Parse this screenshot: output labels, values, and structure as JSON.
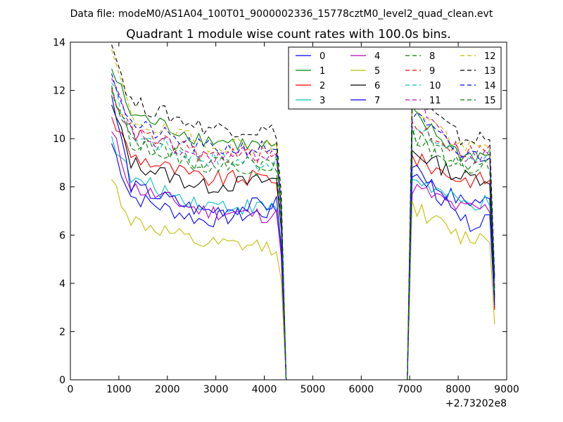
{
  "chart_data": {
    "type": "line",
    "supertitle": "Data file: modeM0/AS1A04_100T01_9000002336_15778cztM0_level2_quad_clean.evt",
    "title": "Quadrant 1 module wise count rates with 100.0s bins.",
    "xlabel": "",
    "ylabel": "",
    "x_offset_label": "+2.73202e8",
    "xlim": [
      0,
      9000
    ],
    "ylim": [
      0,
      14
    ],
    "xticks": [
      0,
      1000,
      2000,
      3000,
      4000,
      5000,
      6000,
      7000,
      8000,
      9000
    ],
    "xtick_labels": [
      "0",
      "1000",
      "2000",
      "3000",
      "4000",
      "5000",
      "6000",
      "7000",
      "8000",
      "9000"
    ],
    "yticks": [
      0,
      2,
      4,
      6,
      8,
      10,
      12,
      14
    ],
    "ytick_labels": [
      "0",
      "2",
      "4",
      "6",
      "8",
      "10",
      "12",
      "14"
    ],
    "legend_position": "upper-right",
    "segments": [
      {
        "x_start": 850,
        "x_end": 4250,
        "step": 100,
        "drop_at": 4450
      },
      {
        "x_start": 7050,
        "x_end": 8650,
        "step": 100,
        "rise_from": 6950,
        "last_x": 8750
      },
      {
        "gap_start": 4450,
        "gap_end": 6950
      }
    ],
    "series": [
      {
        "name": "0",
        "color": "#0000ff",
        "dashed": false,
        "seg1": {
          "start": 9.8,
          "plateau": 6.6,
          "end": 7.0
        },
        "seg2": {
          "peak": 8.6,
          "end": 7.4,
          "last": 3.0
        }
      },
      {
        "name": "1",
        "color": "#008000",
        "dashed": false,
        "seg1": {
          "start": 12.9,
          "plateau": 10.0,
          "end": 9.6
        },
        "seg2": {
          "peak": 11.0,
          "end": 9.3,
          "last": 3.5
        }
      },
      {
        "name": "2",
        "color": "#ff0000",
        "dashed": false,
        "seg1": {
          "start": 10.9,
          "plateau": 8.3,
          "end": 8.4
        },
        "seg2": {
          "peak": 9.2,
          "end": 8.3,
          "last": 2.9
        }
      },
      {
        "name": "3",
        "color": "#00bfbf",
        "dashed": false,
        "seg1": {
          "start": 10.1,
          "plateau": 7.3,
          "end": 7.1
        },
        "seg2": {
          "peak": 8.4,
          "end": 7.3,
          "last": 3.2
        }
      },
      {
        "name": "4",
        "color": "#bf00bf",
        "dashed": false,
        "seg1": {
          "start": 10.3,
          "plateau": 7.0,
          "end": 6.8
        },
        "seg2": {
          "peak": 8.0,
          "end": 7.1,
          "last": 3.3
        }
      },
      {
        "name": "5",
        "color": "#bfbf00",
        "dashed": false,
        "seg1": {
          "start": 8.3,
          "plateau": 5.6,
          "end": 5.5
        },
        "seg2": {
          "peak": 7.2,
          "end": 5.9,
          "last": 2.3
        }
      },
      {
        "name": "6",
        "color": "#000000",
        "dashed": false,
        "seg1": {
          "start": 11.4,
          "plateau": 8.0,
          "end": 8.3
        },
        "seg2": {
          "peak": 9.5,
          "end": 8.4,
          "last": 3.4
        }
      },
      {
        "name": "7",
        "color": "#0000ff",
        "dashed": false,
        "seg1": {
          "start": 11.8,
          "plateau": 7.0,
          "end": 7.3
        },
        "seg2": {
          "peak": 9.0,
          "end": 6.5,
          "last": 3.1
        }
      },
      {
        "name": "8",
        "color": "#008000",
        "dashed": true,
        "seg1": {
          "start": 12.0,
          "plateau": 8.9,
          "end": 8.8
        },
        "seg2": {
          "peak": 10.2,
          "end": 8.9,
          "last": 3.8
        }
      },
      {
        "name": "9",
        "color": "#ff0000",
        "dashed": true,
        "seg1": {
          "start": 12.1,
          "plateau": 9.3,
          "end": 9.3
        },
        "seg2": {
          "peak": 10.6,
          "end": 9.5,
          "last": 3.9
        }
      },
      {
        "name": "10",
        "color": "#00bfbf",
        "dashed": true,
        "seg1": {
          "start": 12.3,
          "plateau": 9.2,
          "end": 9.0
        },
        "seg2": {
          "peak": 10.4,
          "end": 9.4,
          "last": 3.7
        }
      },
      {
        "name": "11",
        "color": "#bf00bf",
        "dashed": true,
        "seg1": {
          "start": 12.5,
          "plateau": 9.2,
          "end": 9.4
        },
        "seg2": {
          "peak": 12.0,
          "end": 9.2,
          "last": 4.0
        }
      },
      {
        "name": "12",
        "color": "#bfbf00",
        "dashed": true,
        "seg1": {
          "start": 13.7,
          "plateau": 9.8,
          "end": 9.7
        },
        "seg2": {
          "peak": 11.5,
          "end": 9.6,
          "last": 4.2
        }
      },
      {
        "name": "13",
        "color": "#000000",
        "dashed": true,
        "seg1": {
          "start": 13.9,
          "plateau": 10.5,
          "end": 10.3
        },
        "seg2": {
          "peak": 11.8,
          "end": 10.0,
          "last": 4.3
        }
      },
      {
        "name": "14",
        "color": "#0000ff",
        "dashed": true,
        "seg1": {
          "start": 12.7,
          "plateau": 9.6,
          "end": 9.6
        },
        "seg2": {
          "peak": 11.0,
          "end": 9.3,
          "last": 4.1
        }
      },
      {
        "name": "15",
        "color": "#008000",
        "dashed": true,
        "seg1": {
          "start": 12.2,
          "plateau": 9.0,
          "end": 9.0
        },
        "seg2": {
          "peak": 10.1,
          "end": 8.8,
          "last": 3.8
        }
      }
    ]
  }
}
